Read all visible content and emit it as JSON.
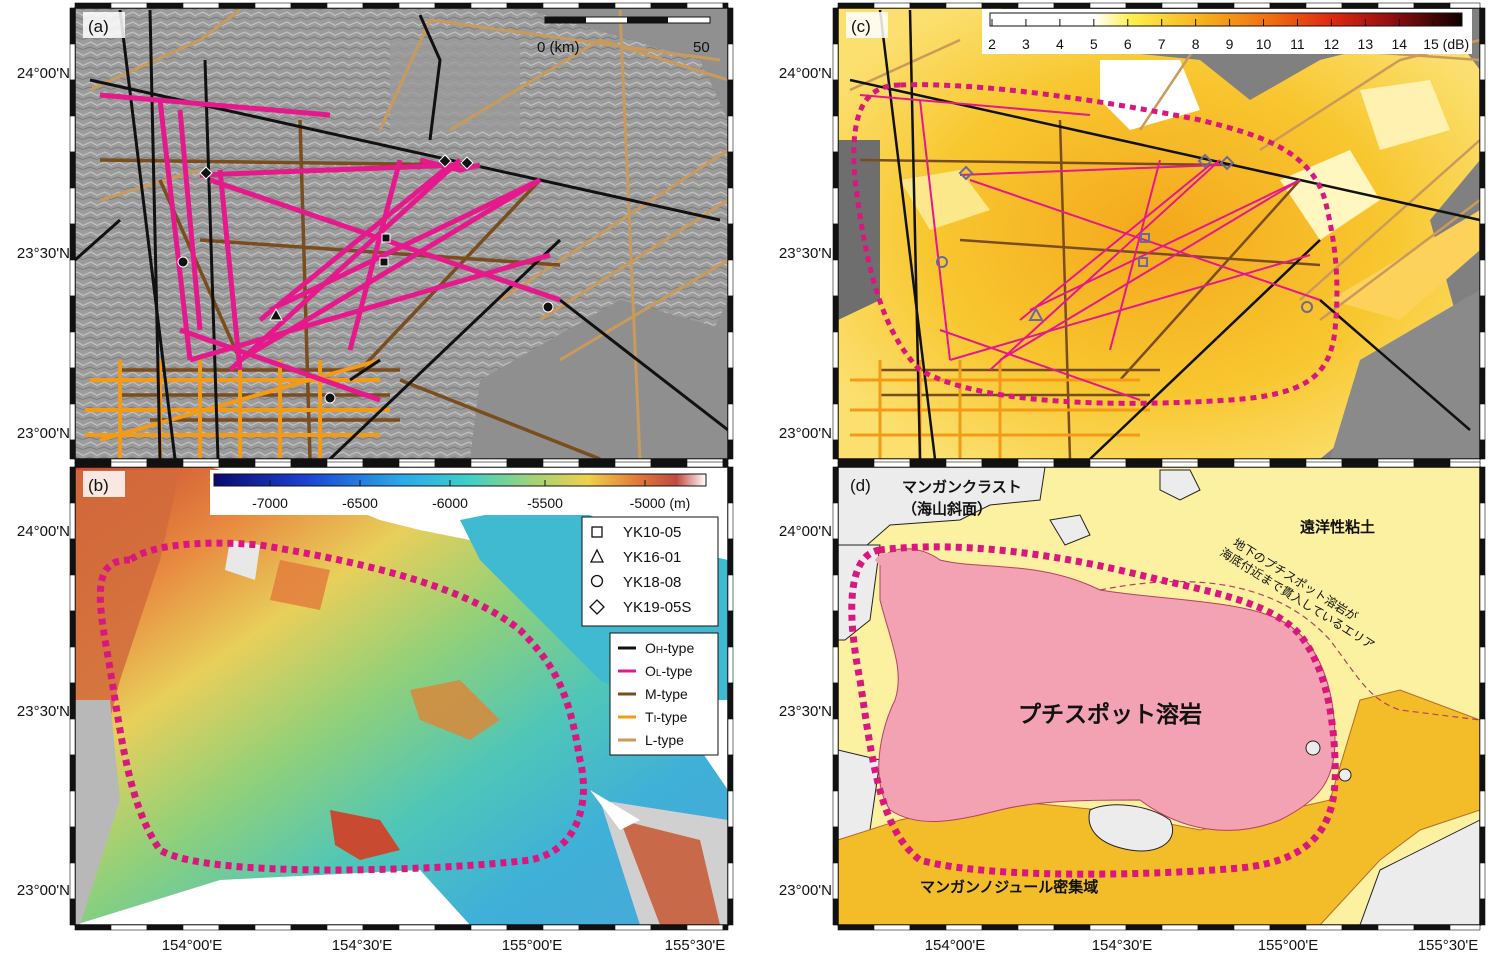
{
  "panels": {
    "a": {
      "tag": "(a)"
    },
    "b": {
      "tag": "(b)"
    },
    "c": {
      "tag": "(c)"
    },
    "d": {
      "tag": "(d)"
    }
  },
  "axes": {
    "lat_left": [
      "24°00'N",
      "23°30'N",
      "23°00'N",
      "24°00'N",
      "23°30'N",
      "23°00'N"
    ],
    "lat_right": [
      "24°00'N",
      "23°30'N",
      "23°00'N",
      "24°00'N",
      "23°30'N",
      "23°00'N"
    ],
    "lon_left": [
      "154°00'E",
      "154°30'E",
      "155°00'E",
      "155°30'E"
    ],
    "lon_right": [
      "154°00'E",
      "154°30'E",
      "155°00'E",
      "155°30'E"
    ]
  },
  "scale_bar": {
    "start": "0 (km)",
    "end": "50"
  },
  "backscatter_scale": {
    "ticks": [
      "2",
      "3",
      "4",
      "5",
      "6",
      "7",
      "8",
      "9",
      "10",
      "11",
      "12",
      "13",
      "14",
      "15 (dB)"
    ]
  },
  "depth_scale": {
    "ticks": [
      "-7000",
      "-6500",
      "-6000",
      "-5500",
      "-5000 (m)"
    ]
  },
  "cruise_legend": [
    {
      "label": "YK10-05",
      "marker": "square"
    },
    {
      "label": "YK16-01",
      "marker": "triangle"
    },
    {
      "label": "YK18-08",
      "marker": "circle"
    },
    {
      "label": "YK19-05S",
      "marker": "diamond"
    }
  ],
  "type_legend": [
    {
      "main": "O",
      "sub": "H",
      "rest": "-type",
      "color": "#111111"
    },
    {
      "main": "O",
      "sub": "L",
      "rest": "-type",
      "color": "#e6198c"
    },
    {
      "main": "M-type",
      "sub": "",
      "rest": "",
      "color": "#7a4d1e"
    },
    {
      "main": "T",
      "sub": "I",
      "rest": "-type",
      "color": "#f39a16"
    },
    {
      "main": "L-type",
      "sub": "",
      "rest": "",
      "color": "#c99a5b"
    }
  ],
  "panel_d": {
    "crust": "マンガンクラスト",
    "crust2": "（海山斜面）",
    "clay": "遠洋性粘土",
    "lava": "プチスポット溶岩",
    "nodule": "マンガンノジュール密集域",
    "note1": "地下のプチスポット溶岩が",
    "note2": "海底付近まで貫入しているエリア"
  },
  "colors": {
    "oh": "#111111",
    "ol": "#e6198c",
    "m": "#7a4d1e",
    "ti": "#f39a16",
    "l": "#c99a5b",
    "dotted_outline": "#d9177f",
    "clay": "#fbf1a0",
    "lava": "#f2a2b3",
    "nodule": "#f3bd2a",
    "crust": "#ececec"
  }
}
